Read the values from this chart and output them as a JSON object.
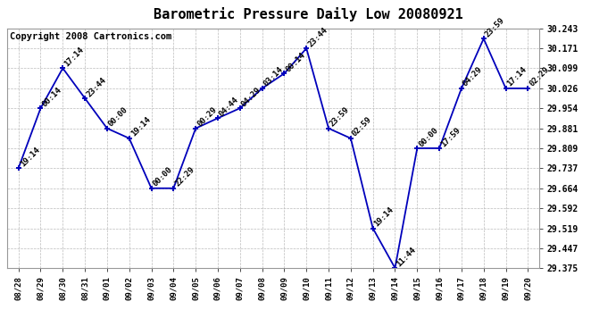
{
  "title": "Barometric Pressure Daily Low 20080921",
  "copyright": "Copyright 2008 Cartronics.com",
  "x_labels": [
    "08/28",
    "08/29",
    "08/30",
    "08/31",
    "09/01",
    "09/02",
    "09/03",
    "09/04",
    "09/05",
    "09/06",
    "09/07",
    "09/08",
    "09/09",
    "09/10",
    "09/11",
    "09/12",
    "09/13",
    "09/14",
    "09/15",
    "09/16",
    "09/17",
    "09/18",
    "09/19",
    "09/20"
  ],
  "y_values": [
    29.737,
    29.954,
    30.099,
    29.99,
    29.881,
    29.845,
    29.664,
    29.664,
    29.881,
    29.918,
    29.954,
    30.026,
    30.08,
    30.171,
    29.881,
    29.845,
    29.519,
    29.375,
    29.809,
    29.809,
    30.026,
    30.206,
    30.026,
    30.026
  ],
  "annotations": [
    "19:14",
    "00:14",
    "17:14",
    "23:44",
    "00:00",
    "19:14",
    "00:00",
    "22:29",
    "00:29",
    "04:44",
    "04:29",
    "03:14",
    "00:14",
    "23:44",
    "23:59",
    "02:59",
    "19:14",
    "11:44",
    "00:00",
    "17:59",
    "04:29",
    "23:59",
    "17:14",
    "02:29"
  ],
  "y_min": 29.375,
  "y_max": 30.243,
  "y_ticks": [
    29.375,
    29.447,
    29.519,
    29.592,
    29.664,
    29.737,
    29.809,
    29.881,
    29.954,
    30.026,
    30.099,
    30.171,
    30.243
  ],
  "line_color": "#0000bb",
  "marker_color": "#0000bb",
  "bg_color": "#ffffff",
  "grid_color": "#bbbbbb",
  "title_fontsize": 11,
  "annotation_fontsize": 6.5,
  "copyright_fontsize": 7.5
}
